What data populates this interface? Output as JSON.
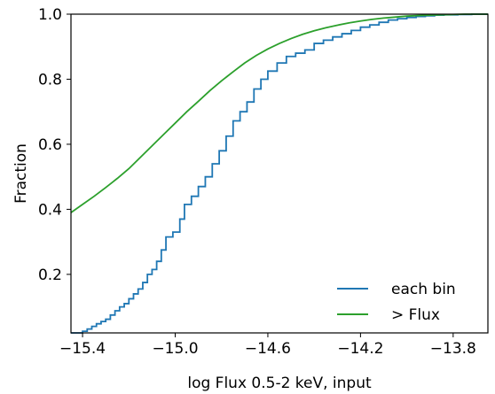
{
  "chart_data": {
    "type": "line",
    "xlabel": "log Flux 0.5-2 keV, input",
    "ylabel": "Fraction",
    "xlim": [
      -15.45,
      -13.65
    ],
    "ylim": [
      0.02,
      1.0
    ],
    "x_ticks": [
      -15.4,
      -15.0,
      -14.6,
      -14.2,
      -13.8
    ],
    "x_tick_labels": [
      "−15.4",
      "−15.0",
      "−14.6",
      "−14.2",
      "−13.8"
    ],
    "y_ticks": [
      0.2,
      0.4,
      0.6,
      0.8,
      1.0
    ],
    "y_tick_labels": [
      "0.2",
      "0.4",
      "0.6",
      "0.8",
      "1.0"
    ],
    "legend_position": "lower-right",
    "series": [
      {
        "name": "each bin",
        "color": "#1f77b4",
        "style": "step",
        "x": [
          -15.45,
          -15.4,
          -15.38,
          -15.36,
          -15.34,
          -15.32,
          -15.3,
          -15.28,
          -15.26,
          -15.24,
          -15.22,
          -15.2,
          -15.18,
          -15.16,
          -15.14,
          -15.12,
          -15.1,
          -15.08,
          -15.06,
          -15.04,
          -15.01,
          -14.98,
          -14.96,
          -14.93,
          -14.9,
          -14.87,
          -14.84,
          -14.81,
          -14.78,
          -14.75,
          -14.72,
          -14.69,
          -14.66,
          -14.63,
          -14.6,
          -14.56,
          -14.52,
          -14.48,
          -14.44,
          -14.4,
          -14.36,
          -14.32,
          -14.28,
          -14.24,
          -14.2,
          -14.16,
          -14.12,
          -14.08,
          -14.04,
          -14.0,
          -13.96,
          -13.92,
          -13.88,
          -13.84,
          -13.78,
          -13.72,
          -13.65
        ],
        "y": [
          0.02,
          0.025,
          0.032,
          0.04,
          0.048,
          0.055,
          0.062,
          0.075,
          0.088,
          0.1,
          0.11,
          0.125,
          0.14,
          0.155,
          0.175,
          0.2,
          0.215,
          0.24,
          0.275,
          0.315,
          0.33,
          0.37,
          0.415,
          0.44,
          0.47,
          0.5,
          0.54,
          0.58,
          0.625,
          0.672,
          0.7,
          0.73,
          0.77,
          0.8,
          0.825,
          0.85,
          0.87,
          0.88,
          0.89,
          0.91,
          0.92,
          0.93,
          0.94,
          0.95,
          0.96,
          0.967,
          0.975,
          0.982,
          0.986,
          0.99,
          0.993,
          0.995,
          0.997,
          0.998,
          0.999,
          1.0,
          1.0
        ]
      },
      {
        "name": "> Flux",
        "color": "#2ca02c",
        "style": "line",
        "x": [
          -15.45,
          -15.4,
          -15.35,
          -15.3,
          -15.25,
          -15.2,
          -15.15,
          -15.1,
          -15.05,
          -15.0,
          -14.95,
          -14.9,
          -14.85,
          -14.8,
          -14.75,
          -14.7,
          -14.65,
          -14.6,
          -14.55,
          -14.5,
          -14.45,
          -14.4,
          -14.35,
          -14.3,
          -14.25,
          -14.2,
          -14.15,
          -14.1,
          -14.05,
          -14.0,
          -13.95,
          -13.9,
          -13.85,
          -13.8,
          -13.75,
          -13.7,
          -13.65
        ],
        "y": [
          0.39,
          0.415,
          0.44,
          0.467,
          0.495,
          0.525,
          0.56,
          0.595,
          0.63,
          0.665,
          0.7,
          0.732,
          0.765,
          0.795,
          0.823,
          0.85,
          0.873,
          0.893,
          0.91,
          0.925,
          0.938,
          0.949,
          0.958,
          0.966,
          0.973,
          0.979,
          0.984,
          0.988,
          0.991,
          0.994,
          0.996,
          0.997,
          0.998,
          0.999,
          1.0,
          1.0,
          1.0
        ]
      }
    ]
  }
}
